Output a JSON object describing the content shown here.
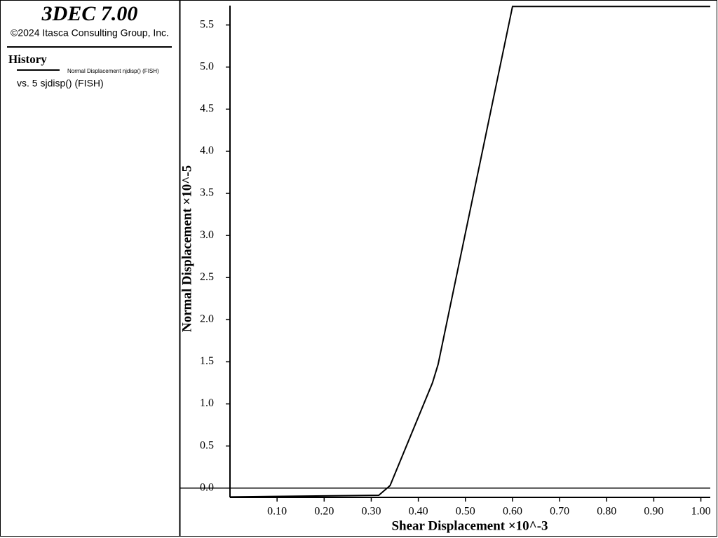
{
  "panel": {
    "title": "3DEC 7.00",
    "copyright": "©2024 Itasca Consulting Group, Inc.",
    "section": "History",
    "x_series_label": "vs. 5 sjdisp() (FISH)"
  },
  "chart_data": {
    "type": "line",
    "x_label": "Shear Displacement ×10^-3",
    "y_label": "Normal Displacement ×10^-5",
    "x": [
      0,
      0.316,
      0.34,
      0.43,
      0.442,
      0.6,
      1.02
    ],
    "series": [
      {
        "name": "Normal Displacement njdisp() (FISH)",
        "color": "#000000",
        "values": [
          -0.105,
          -0.085,
          0.03,
          1.25,
          1.47,
          5.72,
          5.72
        ]
      }
    ],
    "xlim": [
      0,
      1.02
    ],
    "ylim": [
      -0.11,
      5.73
    ],
    "xticks": [
      {
        "value": 0.1,
        "label": "0.10"
      },
      {
        "value": 0.2,
        "label": "0.20"
      },
      {
        "value": 0.3,
        "label": "0.30"
      },
      {
        "value": 0.4,
        "label": "0.40"
      },
      {
        "value": 0.5,
        "label": "0.50"
      },
      {
        "value": 0.6,
        "label": "0.60"
      },
      {
        "value": 0.7,
        "label": "0.70"
      },
      {
        "value": 0.8,
        "label": "0.80"
      },
      {
        "value": 0.9,
        "label": "0.90"
      },
      {
        "value": 1.0,
        "label": "1.00"
      }
    ],
    "yticks": [
      {
        "value": 0,
        "label": "0.0"
      },
      0.5,
      {
        "value": 1,
        "label": "1.0"
      },
      1.5,
      {
        "value": 2,
        "label": "2.0"
      },
      2.5,
      {
        "value": 3,
        "label": "3.0"
      },
      3.5,
      {
        "value": 4,
        "label": "4.0"
      },
      4.5,
      {
        "value": 5,
        "label": "5.0"
      },
      5.5
    ]
  }
}
